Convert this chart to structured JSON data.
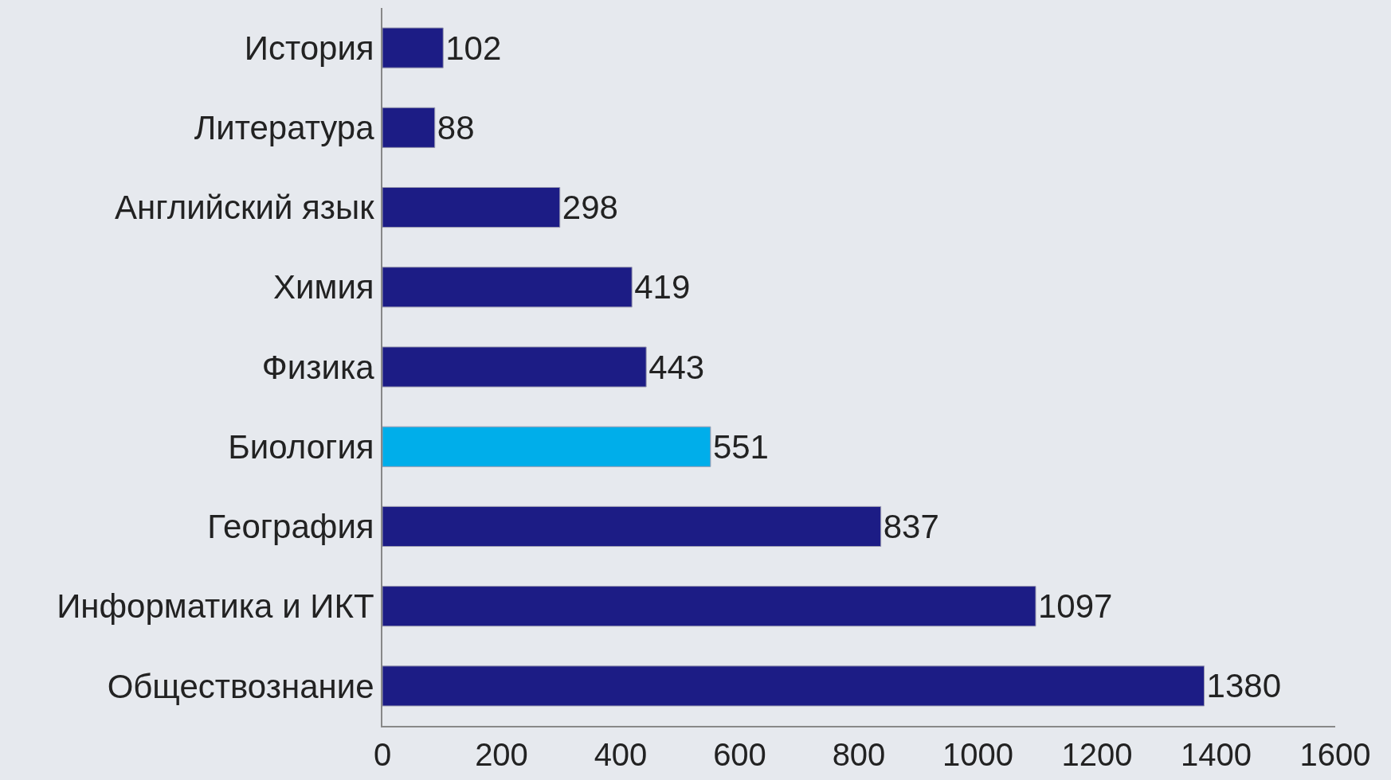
{
  "chart_data": {
    "type": "bar",
    "orientation": "horizontal",
    "categories": [
      "История",
      "Литература",
      "Английский язык",
      "Химия",
      "Физика",
      "Биология",
      "География",
      "Информатика и ИКТ",
      "Обществознание"
    ],
    "values": [
      102,
      88,
      298,
      419,
      443,
      551,
      837,
      1097,
      1380
    ],
    "colors": [
      "#1c1c85",
      "#1c1c85",
      "#1c1c85",
      "#1c1c85",
      "#1c1c85",
      "#00aeea",
      "#1c1c85",
      "#1c1c85",
      "#1c1c85"
    ],
    "xlim": [
      0,
      1600
    ],
    "xticks": [
      0,
      200,
      400,
      600,
      800,
      1000,
      1200,
      1400,
      1600
    ],
    "data_labels": true
  }
}
